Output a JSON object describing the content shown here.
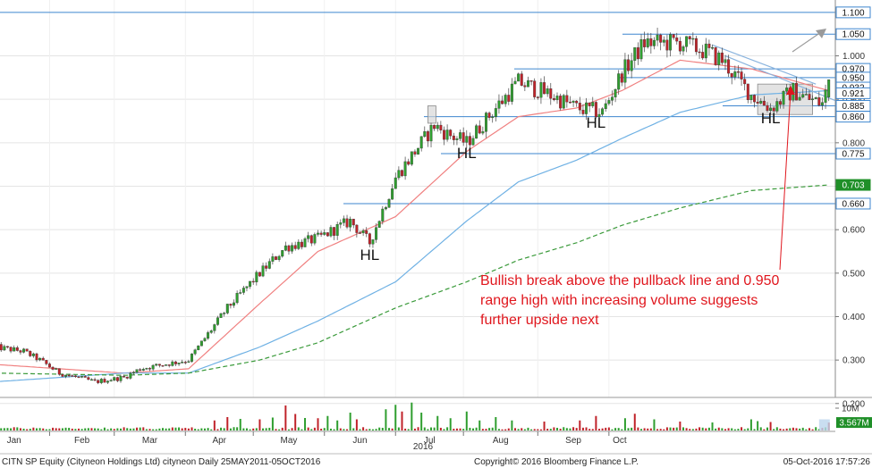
{
  "chart_data": {
    "type": "candlestick",
    "title": "",
    "xlabel": "2016",
    "ylabel": "",
    "x_tick_labels": [
      "Jan",
      "Feb",
      "Mar",
      "Apr",
      "May",
      "Jun",
      "Jul",
      "Aug",
      "Sep",
      "Oct"
    ],
    "y_tick_labels": [
      "0.200",
      "0.300",
      "0.400",
      "0.500",
      "0.600",
      "0.700",
      "0.800",
      "0.900",
      "1.000"
    ],
    "ylim": [
      0.14,
      1.11
    ],
    "price_path": [
      [
        0,
        0.33
      ],
      [
        9,
        0.32
      ],
      [
        14,
        0.3
      ],
      [
        20,
        0.27
      ],
      [
        31,
        0.25
      ],
      [
        40,
        0.26
      ],
      [
        45,
        0.28
      ],
      [
        60,
        0.3
      ],
      [
        72,
        0.42
      ],
      [
        82,
        0.5
      ],
      [
        90,
        0.56
      ],
      [
        100,
        0.58
      ],
      [
        110,
        0.62
      ],
      [
        116,
        0.57
      ],
      [
        124,
        0.72
      ],
      [
        136,
        0.84
      ],
      [
        140,
        0.82
      ],
      [
        146,
        0.8
      ],
      [
        155,
        0.88
      ],
      [
        162,
        0.94
      ],
      [
        172,
        0.91
      ],
      [
        180,
        0.88
      ],
      [
        188,
        0.87
      ],
      [
        194,
        0.96
      ],
      [
        201,
        1.03
      ],
      [
        212,
        1.03
      ],
      [
        220,
        1.01
      ],
      [
        225,
        0.99
      ],
      [
        234,
        0.91
      ],
      [
        240,
        0.88
      ],
      [
        247,
        0.92
      ],
      [
        252,
        0.9
      ],
      [
        256,
        0.89
      ],
      [
        258,
        0.94
      ]
    ],
    "moving_averages": [
      {
        "style": "red thin (short-term)",
        "color": "#f08080",
        "points": [
          [
            0,
            0.29
          ],
          [
            40,
            0.27
          ],
          [
            60,
            0.28
          ],
          [
            82,
            0.43
          ],
          [
            100,
            0.55
          ],
          [
            124,
            0.63
          ],
          [
            146,
            0.78
          ],
          [
            162,
            0.86
          ],
          [
            180,
            0.88
          ],
          [
            194,
            0.92
          ],
          [
            212,
            0.99
          ],
          [
            234,
            0.97
          ],
          [
            258,
            0.92
          ]
        ]
      },
      {
        "style": "blue (medium-term)",
        "color": "#6fb1e4",
        "points": [
          [
            0,
            0.25
          ],
          [
            40,
            0.27
          ],
          [
            60,
            0.27
          ],
          [
            82,
            0.33
          ],
          [
            100,
            0.39
          ],
          [
            124,
            0.48
          ],
          [
            146,
            0.62
          ],
          [
            162,
            0.71
          ],
          [
            180,
            0.76
          ],
          [
            194,
            0.81
          ],
          [
            212,
            0.87
          ],
          [
            234,
            0.91
          ],
          [
            258,
            0.92
          ]
        ]
      },
      {
        "style": "green dashed (long-term)",
        "color": "#3a9a3a",
        "points": [
          [
            0,
            0.27
          ],
          [
            40,
            0.265
          ],
          [
            60,
            0.27
          ],
          [
            82,
            0.3
          ],
          [
            100,
            0.34
          ],
          [
            124,
            0.42
          ],
          [
            146,
            0.48
          ],
          [
            162,
            0.53
          ],
          [
            180,
            0.57
          ],
          [
            194,
            0.61
          ],
          [
            212,
            0.65
          ],
          [
            234,
            0.69
          ],
          [
            258,
            0.703
          ]
        ]
      }
    ],
    "horizontal_levels": [
      1.1,
      1.05,
      0.97,
      0.95,
      0.885,
      0.86,
      0.775,
      0.66
    ],
    "right_axis_boxes": [
      {
        "label": "1.100",
        "value": 1.1
      },
      {
        "label": "1.050",
        "value": 1.05
      },
      {
        "label": "0.970",
        "value": 0.97
      },
      {
        "label": "0.950",
        "value": 0.95
      },
      {
        "label": "0.932",
        "value": 0.927
      },
      {
        "label": "0.921",
        "value": 0.914
      },
      {
        "label": "0.885",
        "value": 0.885
      },
      {
        "label": "0.860",
        "value": 0.86
      },
      {
        "label": "0.775",
        "value": 0.775
      },
      {
        "label": "0.703",
        "value": 0.703
      },
      {
        "label": "0.660",
        "value": 0.66
      }
    ],
    "annotations": [
      {
        "text": "HL",
        "x": 116,
        "y": 0.53
      },
      {
        "text": "HL",
        "x": 146,
        "y": 0.765
      },
      {
        "text": "HL",
        "x": 186,
        "y": 0.835
      },
      {
        "text": "HL",
        "x": 240,
        "y": 0.845
      }
    ],
    "callout_text": [
      "Bullish break above the pullback line and 0.950",
      "range high with increasing volume suggests",
      "further upside next"
    ],
    "volume": {
      "axis_label": "10M",
      "last_label": "3.567M",
      "ylim_millions": [
        0,
        14
      ],
      "spikes_millions": [
        [
          68,
          4.5
        ],
        [
          72,
          6.0
        ],
        [
          76,
          5.2
        ],
        [
          82,
          5.0
        ],
        [
          86,
          5.8
        ],
        [
          90,
          11.2
        ],
        [
          93,
          7.4
        ],
        [
          96,
          5.6
        ],
        [
          100,
          5.5
        ],
        [
          103,
          6.5
        ],
        [
          106,
          4.5
        ],
        [
          110,
          8.0
        ],
        [
          112,
          5.0
        ],
        [
          121,
          9.5
        ],
        [
          124,
          11.5
        ],
        [
          126,
          8.5
        ],
        [
          129,
          12.5
        ],
        [
          132,
          8.0
        ],
        [
          137,
          6.5
        ],
        [
          141,
          5.5
        ],
        [
          146,
          8.5
        ],
        [
          150,
          4.5
        ],
        [
          155,
          6.0
        ],
        [
          160,
          4.5
        ],
        [
          170,
          4.0
        ],
        [
          181,
          4.5
        ],
        [
          186,
          6.5
        ],
        [
          195,
          5.5
        ],
        [
          198,
          7.5
        ],
        [
          204,
          5.0
        ],
        [
          212,
          4.0
        ],
        [
          222,
          3.6
        ],
        [
          234,
          5.0
        ],
        [
          236,
          4.2
        ],
        [
          240,
          3.8
        ],
        [
          258,
          3.567
        ]
      ]
    }
  },
  "footer": {
    "left": "CITN SP Equity (Cityneon Holdings Ltd) cityneon  Daily 25MAY2011-05OCT2016",
    "center": "Copyright© 2016 Bloomberg Finance L.P.",
    "right": "05-Oct-2016 17:57:26"
  },
  "colors": {
    "up_candle": "#2f9e2f",
    "down_candle": "#c0232a",
    "level_line": "#3e86cf",
    "annotation": "#e0161d",
    "trend_line": "#8ab4de"
  }
}
